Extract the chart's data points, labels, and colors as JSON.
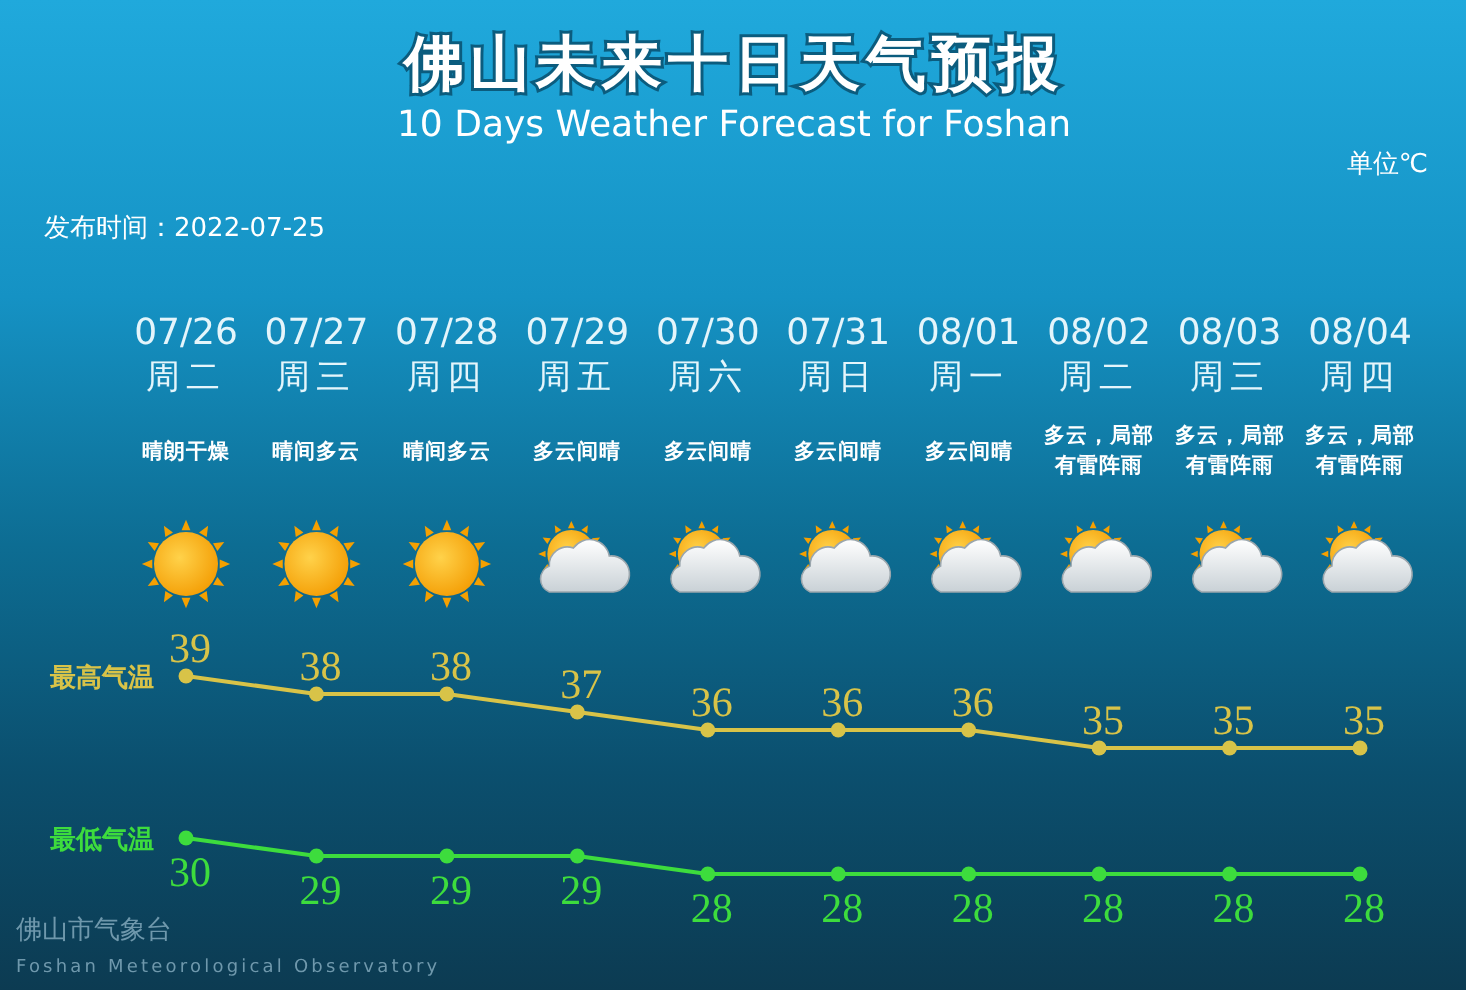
{
  "chart_data": {
    "type": "line",
    "title": "佛山未来十日天气预报",
    "subtitle": "10 Days Weather Forecast for Foshan",
    "categories": [
      "07/26",
      "07/27",
      "07/28",
      "07/29",
      "07/30",
      "07/31",
      "08/01",
      "08/02",
      "08/03",
      "08/04"
    ],
    "series": [
      {
        "name": "最高气温",
        "color": "#d8c348",
        "values": [
          39,
          38,
          38,
          37,
          36,
          36,
          36,
          35,
          35,
          35
        ]
      },
      {
        "name": "最低气温",
        "color": "#3ddc3d",
        "values": [
          30,
          29,
          29,
          29,
          28,
          28,
          28,
          28,
          28,
          28
        ]
      }
    ],
    "marker": "circle",
    "line_style": "solid",
    "data_labels": true,
    "tick_labels": "x",
    "annotations": [
      "单位℃",
      "发布时间：2022-07-25",
      "周二",
      "晴朗干燥",
      "周三",
      "晴间多云",
      "周四",
      "晴间多云",
      "周五",
      "多云间晴",
      "周六",
      "多云间晴",
      "周日",
      "多云间晴",
      "周一",
      "多云间晴",
      "周二",
      "多云，局部有雷阵雨",
      "周三",
      "多云，局部有雷阵雨",
      "周四",
      "多云，局部有雷阵雨",
      "佛山市气象台",
      "Foshan Meteorological Observatory"
    ]
  }
}
